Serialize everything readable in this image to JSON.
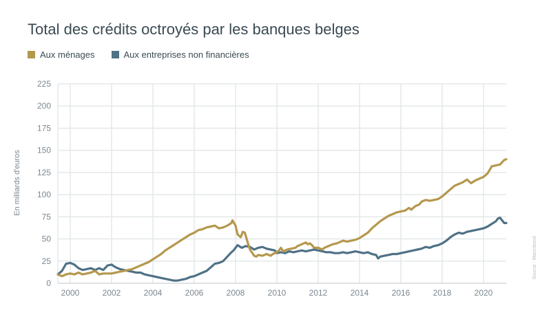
{
  "chart_data": {
    "type": "line",
    "title": "Total des crédits octroyés par les banques belges",
    "ylabel": "En milliards d'euros",
    "xlabel": "",
    "ylim": [
      0,
      225
    ],
    "xlim": [
      1999.4,
      2021.1
    ],
    "yticks": [
      0,
      25,
      50,
      75,
      100,
      125,
      150,
      175,
      200,
      225
    ],
    "xticks": [
      2000,
      2002,
      2004,
      2006,
      2008,
      2010,
      2012,
      2014,
      2016,
      2018,
      2020
    ],
    "grid": true,
    "legend_position": "top-left",
    "source": "Source : Macrobond",
    "series": [
      {
        "name": "Aux ménages",
        "color": "#b5974d",
        "points": [
          [
            1999.4,
            10
          ],
          [
            1999.6,
            8
          ],
          [
            1999.8,
            10
          ],
          [
            2000.0,
            11
          ],
          [
            2000.2,
            10
          ],
          [
            2000.4,
            12
          ],
          [
            2000.6,
            10
          ],
          [
            2000.8,
            11
          ],
          [
            2001.0,
            12
          ],
          [
            2001.2,
            14
          ],
          [
            2001.4,
            10
          ],
          [
            2001.6,
            11
          ],
          [
            2001.8,
            11
          ],
          [
            2002.0,
            11
          ],
          [
            2002.2,
            12
          ],
          [
            2002.4,
            13
          ],
          [
            2002.6,
            14
          ],
          [
            2002.8,
            15
          ],
          [
            2003.0,
            16
          ],
          [
            2003.2,
            18
          ],
          [
            2003.4,
            20
          ],
          [
            2003.6,
            22
          ],
          [
            2003.8,
            24
          ],
          [
            2004.0,
            27
          ],
          [
            2004.2,
            30
          ],
          [
            2004.4,
            33
          ],
          [
            2004.6,
            37
          ],
          [
            2004.8,
            40
          ],
          [
            2005.0,
            43
          ],
          [
            2005.2,
            46
          ],
          [
            2005.4,
            49
          ],
          [
            2005.6,
            52
          ],
          [
            2005.8,
            55
          ],
          [
            2006.0,
            57
          ],
          [
            2006.2,
            60
          ],
          [
            2006.4,
            61
          ],
          [
            2006.6,
            63
          ],
          [
            2006.8,
            64
          ],
          [
            2007.0,
            65
          ],
          [
            2007.2,
            62
          ],
          [
            2007.4,
            63
          ],
          [
            2007.6,
            65
          ],
          [
            2007.8,
            68
          ],
          [
            2007.85,
            71
          ],
          [
            2008.0,
            65
          ],
          [
            2008.1,
            55
          ],
          [
            2008.25,
            52
          ],
          [
            2008.35,
            58
          ],
          [
            2008.45,
            57
          ],
          [
            2008.6,
            45
          ],
          [
            2008.7,
            38
          ],
          [
            2008.9,
            31
          ],
          [
            2009.0,
            30
          ],
          [
            2009.1,
            32
          ],
          [
            2009.3,
            31
          ],
          [
            2009.5,
            33
          ],
          [
            2009.7,
            31
          ],
          [
            2009.8,
            33
          ],
          [
            2010.0,
            35
          ],
          [
            2010.1,
            37
          ],
          [
            2010.2,
            40
          ],
          [
            2010.3,
            36
          ],
          [
            2010.5,
            38
          ],
          [
            2010.7,
            39
          ],
          [
            2010.9,
            40
          ],
          [
            2011.0,
            42
          ],
          [
            2011.2,
            44
          ],
          [
            2011.4,
            46
          ],
          [
            2011.5,
            44
          ],
          [
            2011.6,
            45
          ],
          [
            2011.7,
            43
          ],
          [
            2011.8,
            40
          ],
          [
            2012.0,
            40
          ],
          [
            2012.2,
            38
          ],
          [
            2012.3,
            40
          ],
          [
            2012.5,
            42
          ],
          [
            2012.7,
            44
          ],
          [
            2012.9,
            45
          ],
          [
            2013.0,
            46
          ],
          [
            2013.2,
            48
          ],
          [
            2013.4,
            47
          ],
          [
            2013.6,
            48
          ],
          [
            2013.8,
            49
          ],
          [
            2014.0,
            51
          ],
          [
            2014.2,
            54
          ],
          [
            2014.4,
            57
          ],
          [
            2014.6,
            62
          ],
          [
            2014.8,
            66
          ],
          [
            2015.0,
            70
          ],
          [
            2015.2,
            73
          ],
          [
            2015.4,
            76
          ],
          [
            2015.6,
            78
          ],
          [
            2015.8,
            80
          ],
          [
            2016.0,
            81
          ],
          [
            2016.2,
            82
          ],
          [
            2016.4,
            85
          ],
          [
            2016.5,
            83
          ],
          [
            2016.7,
            87
          ],
          [
            2016.9,
            89
          ],
          [
            2017.0,
            92
          ],
          [
            2017.2,
            94
          ],
          [
            2017.4,
            93
          ],
          [
            2017.6,
            94
          ],
          [
            2017.8,
            95
          ],
          [
            2018.0,
            98
          ],
          [
            2018.2,
            102
          ],
          [
            2018.4,
            106
          ],
          [
            2018.6,
            110
          ],
          [
            2018.8,
            112
          ],
          [
            2019.0,
            114
          ],
          [
            2019.2,
            117
          ],
          [
            2019.4,
            113
          ],
          [
            2019.6,
            116
          ],
          [
            2019.8,
            118
          ],
          [
            2020.0,
            120
          ],
          [
            2020.2,
            124
          ],
          [
            2020.4,
            132
          ],
          [
            2020.6,
            133
          ],
          [
            2020.8,
            134
          ],
          [
            2021.0,
            139
          ],
          [
            2021.1,
            140
          ]
        ]
      },
      {
        "name": "Aux entreprises non financières",
        "color": "#4f7185",
        "points": [
          [
            1999.4,
            10
          ],
          [
            1999.6,
            14
          ],
          [
            1999.8,
            22
          ],
          [
            2000.0,
            23
          ],
          [
            2000.2,
            21
          ],
          [
            2000.4,
            17
          ],
          [
            2000.6,
            15
          ],
          [
            2000.8,
            16
          ],
          [
            2001.0,
            17
          ],
          [
            2001.2,
            15
          ],
          [
            2001.4,
            17
          ],
          [
            2001.6,
            15
          ],
          [
            2001.8,
            20
          ],
          [
            2002.0,
            21
          ],
          [
            2002.2,
            18
          ],
          [
            2002.4,
            16
          ],
          [
            2002.6,
            15
          ],
          [
            2002.8,
            14
          ],
          [
            2003.0,
            13
          ],
          [
            2003.2,
            12
          ],
          [
            2003.4,
            12
          ],
          [
            2003.6,
            10
          ],
          [
            2003.8,
            9
          ],
          [
            2004.0,
            8
          ],
          [
            2004.2,
            7
          ],
          [
            2004.4,
            6
          ],
          [
            2004.6,
            5
          ],
          [
            2004.8,
            4
          ],
          [
            2005.0,
            3
          ],
          [
            2005.2,
            3
          ],
          [
            2005.4,
            4
          ],
          [
            2005.6,
            5
          ],
          [
            2005.8,
            7
          ],
          [
            2006.0,
            8
          ],
          [
            2006.2,
            10
          ],
          [
            2006.4,
            12
          ],
          [
            2006.6,
            14
          ],
          [
            2006.8,
            18
          ],
          [
            2007.0,
            22
          ],
          [
            2007.2,
            23
          ],
          [
            2007.4,
            25
          ],
          [
            2007.6,
            30
          ],
          [
            2007.8,
            35
          ],
          [
            2007.9,
            37
          ],
          [
            2008.0,
            40
          ],
          [
            2008.1,
            43
          ],
          [
            2008.3,
            40
          ],
          [
            2008.5,
            42
          ],
          [
            2008.7,
            41
          ],
          [
            2008.9,
            38
          ],
          [
            2009.0,
            39
          ],
          [
            2009.1,
            40
          ],
          [
            2009.3,
            41
          ],
          [
            2009.5,
            39
          ],
          [
            2009.7,
            38
          ],
          [
            2009.9,
            37
          ],
          [
            2010.0,
            34
          ],
          [
            2010.2,
            35
          ],
          [
            2010.4,
            34
          ],
          [
            2010.6,
            36
          ],
          [
            2010.8,
            35
          ],
          [
            2011.0,
            36
          ],
          [
            2011.2,
            37
          ],
          [
            2011.4,
            36
          ],
          [
            2011.6,
            37
          ],
          [
            2011.8,
            38
          ],
          [
            2012.0,
            37
          ],
          [
            2012.2,
            36
          ],
          [
            2012.4,
            35
          ],
          [
            2012.6,
            35
          ],
          [
            2012.8,
            34
          ],
          [
            2013.0,
            34
          ],
          [
            2013.2,
            35
          ],
          [
            2013.4,
            34
          ],
          [
            2013.6,
            35
          ],
          [
            2013.8,
            36
          ],
          [
            2014.0,
            35
          ],
          [
            2014.2,
            34
          ],
          [
            2014.4,
            35
          ],
          [
            2014.6,
            33
          ],
          [
            2014.8,
            32
          ],
          [
            2014.9,
            28
          ],
          [
            2015.0,
            30
          ],
          [
            2015.2,
            31
          ],
          [
            2015.4,
            32
          ],
          [
            2015.6,
            33
          ],
          [
            2015.8,
            33
          ],
          [
            2016.0,
            34
          ],
          [
            2016.2,
            35
          ],
          [
            2016.4,
            36
          ],
          [
            2016.6,
            37
          ],
          [
            2016.8,
            38
          ],
          [
            2017.0,
            39
          ],
          [
            2017.2,
            41
          ],
          [
            2017.4,
            40
          ],
          [
            2017.6,
            42
          ],
          [
            2017.8,
            43
          ],
          [
            2018.0,
            45
          ],
          [
            2018.2,
            48
          ],
          [
            2018.4,
            52
          ],
          [
            2018.6,
            55
          ],
          [
            2018.8,
            57
          ],
          [
            2019.0,
            56
          ],
          [
            2019.2,
            58
          ],
          [
            2019.4,
            59
          ],
          [
            2019.6,
            60
          ],
          [
            2019.8,
            61
          ],
          [
            2020.0,
            62
          ],
          [
            2020.2,
            64
          ],
          [
            2020.4,
            67
          ],
          [
            2020.6,
            70
          ],
          [
            2020.7,
            73
          ],
          [
            2020.8,
            74
          ],
          [
            2020.9,
            71
          ],
          [
            2021.0,
            68
          ],
          [
            2021.1,
            68
          ]
        ]
      }
    ]
  }
}
